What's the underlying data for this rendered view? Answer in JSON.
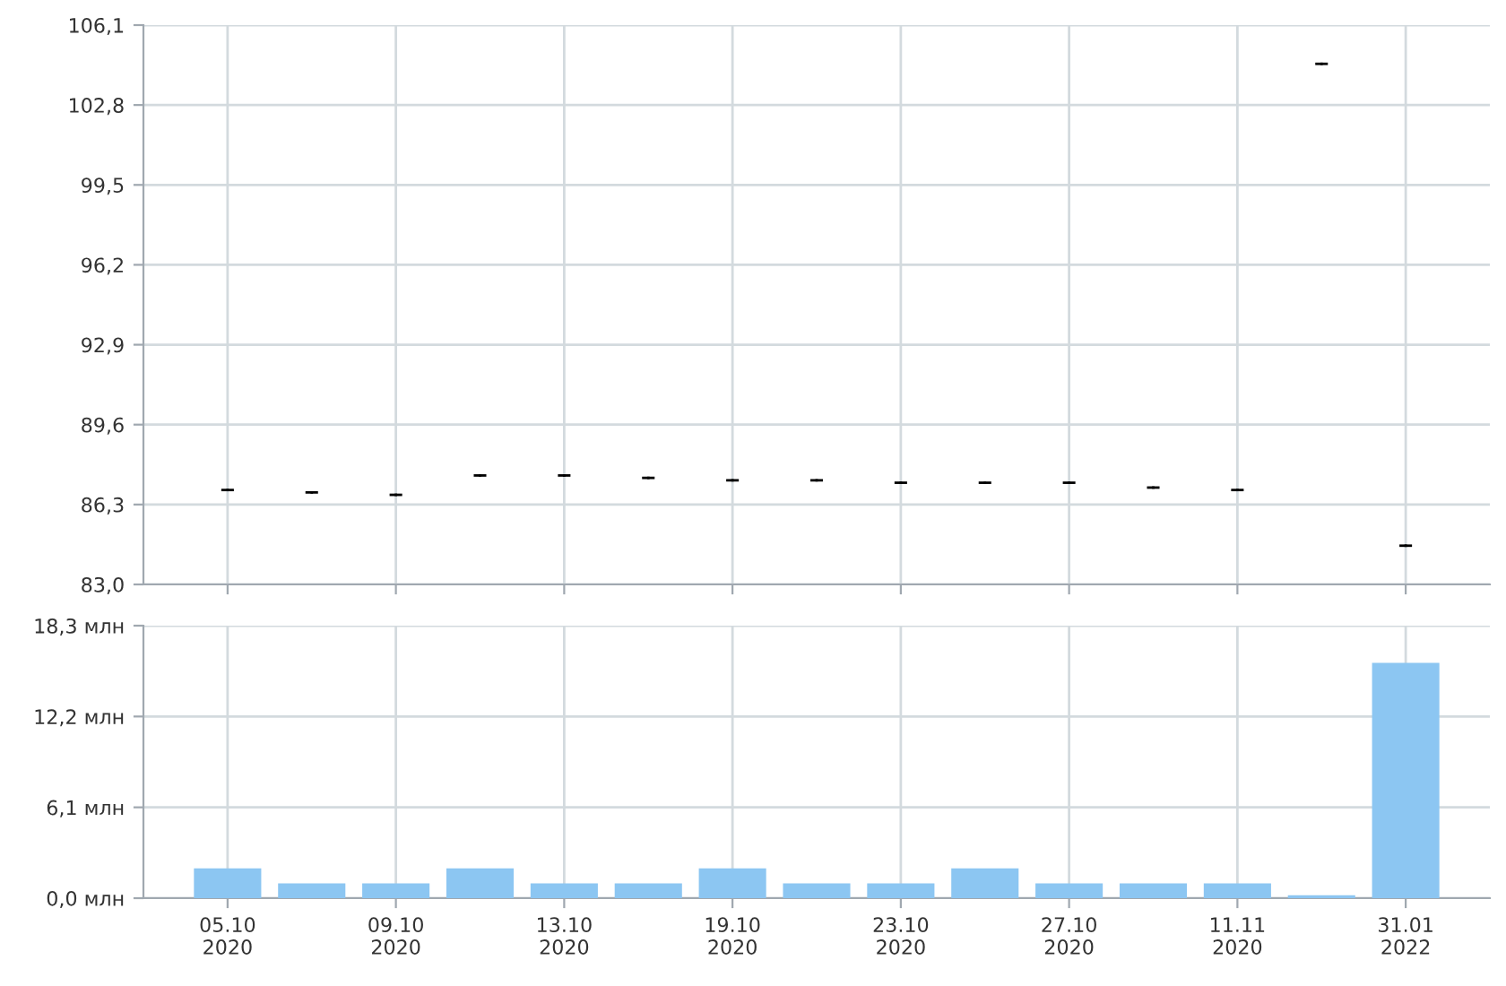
{
  "chart_data": [
    {
      "type": "candlestick",
      "categories": [
        null,
        null,
        null,
        null,
        null,
        null,
        null,
        null,
        null,
        null,
        null,
        null,
        null,
        null,
        null
      ],
      "ohlc": [
        [
          86.9,
          86.9,
          86.9,
          86.9
        ],
        [
          86.8,
          86.8,
          86.8,
          86.8
        ],
        [
          86.7,
          86.7,
          86.7,
          86.7
        ],
        [
          87.5,
          87.5,
          87.5,
          87.5
        ],
        [
          87.5,
          87.5,
          87.5,
          87.5
        ],
        [
          87.4,
          87.4,
          87.4,
          87.4
        ],
        [
          87.3,
          87.3,
          87.3,
          87.3
        ],
        [
          87.3,
          87.3,
          87.3,
          87.3
        ],
        [
          87.2,
          87.2,
          87.2,
          87.2
        ],
        [
          87.2,
          87.2,
          87.2,
          87.2
        ],
        [
          87.2,
          87.2,
          87.2,
          87.2
        ],
        [
          87.0,
          87.0,
          87.0,
          87.0
        ],
        [
          86.9,
          86.9,
          86.9,
          86.9
        ],
        [
          104.5,
          104.5,
          104.5,
          104.5
        ],
        [
          84.6,
          84.6,
          84.6,
          84.6
        ]
      ],
      "color": "#000000",
      "ylim": [
        83.0,
        106.1
      ],
      "yticks": [
        {
          "value": 83.0,
          "label": "83,0"
        },
        {
          "value": 86.3,
          "label": "86,3"
        },
        {
          "value": 89.6,
          "label": "89,6"
        },
        {
          "value": 92.9,
          "label": "92,9"
        },
        {
          "value": 96.2,
          "label": "96,2"
        },
        {
          "value": 99.5,
          "label": "99,5"
        },
        {
          "value": 102.8,
          "label": "102,8"
        },
        {
          "value": 106.1,
          "label": "106,1"
        }
      ],
      "grid": true,
      "tick_labels": "y"
    },
    {
      "type": "bar",
      "categories": [
        "05.10\n2020",
        null,
        "09.10\n2020",
        null,
        "13.10\n2020",
        null,
        "19.10\n2020",
        null,
        "23.10\n2020",
        null,
        "27.10\n2020",
        null,
        "11.11\n2020",
        null,
        "31.01\n2022"
      ],
      "values": [
        2,
        1,
        1,
        2,
        1,
        1,
        2,
        1,
        1,
        2,
        1,
        1,
        1,
        0.2,
        15.8
      ],
      "color": "#8cc6f2",
      "ylim": [
        0,
        18.3
      ],
      "yticks": [
        {
          "value": 0,
          "label": "0,0 млн"
        },
        {
          "value": 6.1,
          "label": "6,1 млн"
        },
        {
          "value": 12.2,
          "label": "12,2 млн"
        },
        {
          "value": 18.3,
          "label": "18,3 млн"
        }
      ],
      "grid": true
    }
  ]
}
